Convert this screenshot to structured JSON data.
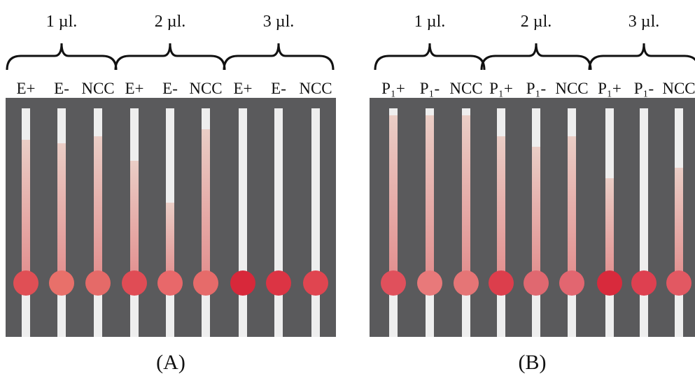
{
  "panels": [
    {
      "caption": "(A)",
      "groups": [
        {
          "volume": "1 µl.",
          "labels": [
            "E+",
            "E-",
            "NCC"
          ]
        },
        {
          "volume": "2 µl.",
          "labels": [
            "E+",
            "E-",
            "NCC"
          ]
        },
        {
          "volume": "3 µl.",
          "labels": [
            "E+",
            "E-",
            "NCC"
          ]
        }
      ]
    },
    {
      "caption": "(B)",
      "groups": [
        {
          "volume": "1 µl.",
          "labels": [
            "P₁+",
            "P₁-",
            "NCC"
          ]
        },
        {
          "volume": "2 µl.",
          "labels": [
            "P₁+",
            "P₁-",
            "NCC"
          ]
        },
        {
          "volume": "3 µl.",
          "labels": [
            "P₁+",
            "P₁-",
            "NCC"
          ]
        }
      ]
    }
  ]
}
